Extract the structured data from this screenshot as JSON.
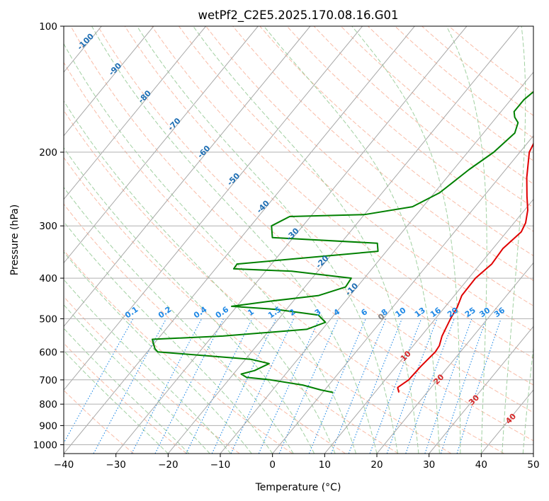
{
  "chart_data": {
    "type": "line",
    "diagram": "skew-t log-p",
    "title": "wetPf2_C2E5.2025.170.08.16.G01",
    "xlabel": "Temperature (°C)",
    "ylabel": "Pressure (hPa)",
    "xlim": [
      -40,
      50
    ],
    "ylim": [
      1050,
      100
    ],
    "y_scale": "log",
    "x_ticks": [
      "−40",
      "−30",
      "−20",
      "−10",
      "0",
      "10",
      "20",
      "30",
      "40",
      "50"
    ],
    "y_ticks": [
      "100",
      "200",
      "300",
      "400",
      "500",
      "600",
      "700",
      "800",
      "900",
      "1000"
    ],
    "y_tick_values": [
      100,
      200,
      300,
      400,
      500,
      600,
      700,
      800,
      900,
      1000
    ],
    "grid": true,
    "colors": {
      "temperature": "#e00000",
      "dewpoint": "#008000",
      "isotherm": "#a8a8a8",
      "dry_adiabat": "#f7a58a",
      "moist_adiabat": "#90c890",
      "mixing_ratio": "#1e88e5",
      "skewed_isotherm_label": "#1f6fb4",
      "moist_label": "#d62828"
    },
    "skewed_isotherm_labels": [
      "-100",
      "-90",
      "-80",
      "-70",
      "-60",
      "-50",
      "-40",
      "-30",
      "-20",
      "-10",
      "0"
    ],
    "skewed_isotherm_values": [
      -100,
      -90,
      -80,
      -70,
      -60,
      -50,
      -40,
      -30,
      -20,
      -10,
      0
    ],
    "mixing_ratio_labels": [
      "0.1",
      "0.2",
      "0.4",
      "0.6",
      "1",
      "1.5",
      "2",
      "3",
      "4",
      "6",
      "8",
      "10",
      "13",
      "16",
      "20",
      "25",
      "30",
      "36"
    ],
    "mixing_ratio_values": [
      0.1,
      0.2,
      0.4,
      0.6,
      1,
      1.5,
      2,
      3,
      4,
      6,
      8,
      10,
      13,
      16,
      20,
      25,
      30,
      36
    ],
    "moist_adiabat_labels": [
      "10",
      "20",
      "30",
      "40"
    ],
    "moist_adiabat_values": [
      10,
      20,
      30,
      40
    ],
    "series": [
      {
        "values": [
          [
            750,
            14.6
          ],
          [
            730,
            13.6
          ],
          [
            700,
            14.5
          ],
          [
            650,
            14.7
          ],
          [
            600,
            15.2
          ],
          [
            580,
            15.0
          ],
          [
            550,
            14.0
          ],
          [
            500,
            12.9
          ],
          [
            470,
            12.4
          ],
          [
            440,
            11.4
          ],
          [
            400,
            11.3
          ],
          [
            370,
            12.2
          ],
          [
            340,
            11.9
          ],
          [
            310,
            12.8
          ],
          [
            295,
            12.2
          ],
          [
            275,
            10.6
          ],
          [
            255,
            8.3
          ],
          [
            230,
            5.3
          ],
          [
            200,
            1.8
          ],
          [
            180,
            0.6
          ],
          [
            165,
            1.3
          ],
          [
            150,
            3.6
          ],
          [
            140,
            6.4
          ],
          [
            133,
            6.6
          ],
          [
            125,
            6.6
          ],
          [
            118,
            7.1
          ],
          [
            110,
            9.8
          ],
          [
            100,
            11.8
          ]
        ]
      },
      {
        "values": [
          [
            750,
            2.0
          ],
          [
            740,
            -0.7
          ],
          [
            720,
            -5.0
          ],
          [
            700,
            -12.0
          ],
          [
            690,
            -17.0
          ],
          [
            678,
            -18.5
          ],
          [
            665,
            -16.5
          ],
          [
            640,
            -14.8
          ],
          [
            625,
            -19.0
          ],
          [
            600,
            -38.0
          ],
          [
            590,
            -39.0
          ],
          [
            575,
            -40.0
          ],
          [
            560,
            -41.0
          ],
          [
            550,
            -28.0
          ],
          [
            530,
            -13.0
          ],
          [
            510,
            -10.5
          ],
          [
            490,
            -13.0
          ],
          [
            475,
            -22.0
          ],
          [
            467,
            -31.0
          ],
          [
            455,
            -25.0
          ],
          [
            440,
            -16.0
          ],
          [
            420,
            -12.2
          ],
          [
            400,
            -12.5
          ],
          [
            385,
            -25.0
          ],
          [
            380,
            -36.5
          ],
          [
            370,
            -36.6
          ],
          [
            345,
            -11.6
          ],
          [
            330,
            -13.0
          ],
          [
            320,
            -34.0
          ],
          [
            300,
            -36.0
          ],
          [
            285,
            -34.0
          ],
          [
            282,
            -20.0
          ],
          [
            270,
            -12.0
          ],
          [
            250,
            -9.0
          ],
          [
            220,
            -7.0
          ],
          [
            200,
            -5.0
          ],
          [
            180,
            -4.0
          ],
          [
            170,
            -5.0
          ],
          [
            165,
            -6.5
          ],
          [
            160,
            -7.5
          ],
          [
            150,
            -7.5
          ],
          [
            140,
            -6.6
          ],
          [
            130,
            -5.5
          ],
          [
            120,
            -4.3
          ],
          [
            110,
            -3.5
          ],
          [
            100,
            -2.5
          ]
        ]
      }
    ]
  }
}
